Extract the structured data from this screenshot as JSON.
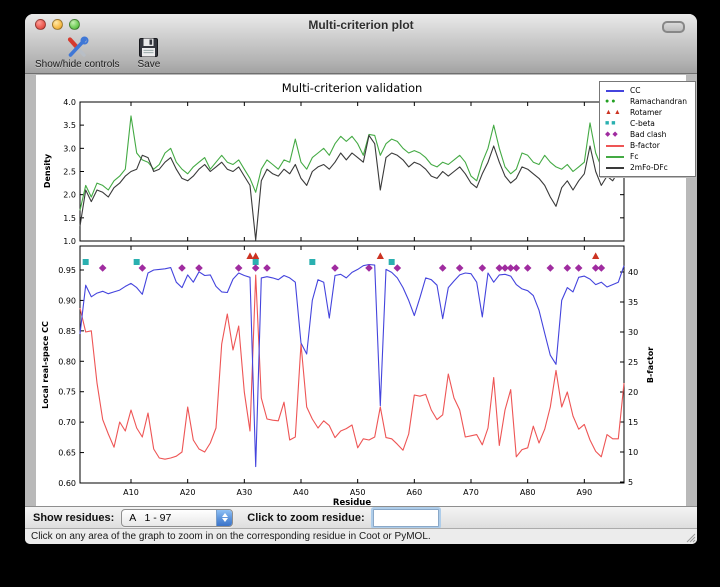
{
  "window": {
    "title": "Multi-criterion plot"
  },
  "toolbar": {
    "items": [
      {
        "label": "Show/hide controls",
        "icon": "tools-icon"
      },
      {
        "label": "Save",
        "icon": "save-icon"
      }
    ]
  },
  "figure_title": "Multi-criterion validation",
  "legend": {
    "entries": [
      {
        "label": "CC",
        "swatch": "line",
        "color": "#4444dd"
      },
      {
        "label": "Ramachandran",
        "swatch": "circles",
        "color": "#22a022"
      },
      {
        "label": "Rotamer",
        "swatch": "triangles",
        "color": "#cc3322"
      },
      {
        "label": "C-beta",
        "swatch": "squares",
        "color": "#2ab0b0"
      },
      {
        "label": "Bad clash",
        "swatch": "diamonds",
        "color": "#a02ca0"
      },
      {
        "label": "B-factor",
        "swatch": "line",
        "color": "#ee5555"
      },
      {
        "label": "Fc",
        "swatch": "line",
        "color": "#44aa44"
      },
      {
        "label": "2mFo-DFc",
        "swatch": "line",
        "color": "#3a3a3a"
      }
    ]
  },
  "colors": {
    "cc": "#4444dd",
    "bfactor": "#ee5555",
    "fc": "#44aa44",
    "two_mfo_dfc": "#3a3a3a",
    "ramachandran": "#22a022",
    "rotamer": "#cc3322",
    "cbeta": "#2ab0b0",
    "bad_clash": "#a02ca0"
  },
  "chart_data": [
    {
      "type": "line",
      "title": "Multi-criterion validation",
      "ylabel": "Density",
      "ylim": [
        1.0,
        4.0
      ],
      "yticks": {
        "labels": [
          "1.0",
          "1.5",
          "2.0",
          "2.5",
          "3.0",
          "3.5",
          "4.0"
        ],
        "values": [
          1.0,
          1.5,
          2.0,
          2.5,
          3.0,
          3.5,
          4.0
        ]
      },
      "x_range": [
        1,
        97
      ],
      "grid": false,
      "legend_position": "upper right",
      "series": [
        {
          "name": "Fc",
          "color_key": "fc",
          "values": [
            1.66,
            2.2,
            1.95,
            2.25,
            2.2,
            2.1,
            2.3,
            2.4,
            2.55,
            3.7,
            2.9,
            2.75,
            2.7,
            2.55,
            2.65,
            2.9,
            3.0,
            2.7,
            2.55,
            2.45,
            2.6,
            2.7,
            2.8,
            2.55,
            2.7,
            2.85,
            2.7,
            2.65,
            2.75,
            2.55,
            2.35,
            2.05,
            2.55,
            2.75,
            2.65,
            2.55,
            2.75,
            2.7,
            3.2,
            2.7,
            2.55,
            2.8,
            2.9,
            3.0,
            2.85,
            3.1,
            3.26,
            3.15,
            3.26,
            3.1,
            2.85,
            3.3,
            3.28,
            2.85,
            3.1,
            3.2,
            3.15,
            3.0,
            2.9,
            2.95,
            2.9,
            2.8,
            2.65,
            2.6,
            2.7,
            2.65,
            2.75,
            2.85,
            2.7,
            2.4,
            2.3,
            2.7,
            3.0,
            3.5,
            3.0,
            2.6,
            2.45,
            2.55,
            2.9,
            2.85,
            2.7,
            2.65,
            2.85,
            2.7,
            2.6,
            2.55,
            2.65,
            2.5,
            2.6,
            2.7,
            3.55,
            2.9,
            2.6,
            2.75,
            2.6,
            3.0,
            3.1
          ]
        },
        {
          "name": "2mFo-DFc",
          "color_key": "two_mfo_dfc",
          "values": [
            1.32,
            2.1,
            1.85,
            2.1,
            2.05,
            1.95,
            2.15,
            2.25,
            2.4,
            2.5,
            2.55,
            2.85,
            2.8,
            2.5,
            2.55,
            2.7,
            2.8,
            2.55,
            2.35,
            2.3,
            2.4,
            2.55,
            2.65,
            2.5,
            2.6,
            2.7,
            2.55,
            2.5,
            2.6,
            2.4,
            2.2,
            1.02,
            2.3,
            2.55,
            2.45,
            2.4,
            2.55,
            2.45,
            2.65,
            2.35,
            2.2,
            2.5,
            2.6,
            2.65,
            2.55,
            2.7,
            2.9,
            2.75,
            2.9,
            2.8,
            2.7,
            3.28,
            3.1,
            2.1,
            2.8,
            2.9,
            2.85,
            2.75,
            2.6,
            2.7,
            2.65,
            2.55,
            2.4,
            2.35,
            2.5,
            2.4,
            2.5,
            2.6,
            2.45,
            2.25,
            2.15,
            2.45,
            2.7,
            3.05,
            2.7,
            2.4,
            2.25,
            2.35,
            2.6,
            2.55,
            2.45,
            2.35,
            2.2,
            1.95,
            1.75,
            2.15,
            2.3,
            2.1,
            2.3,
            2.45,
            3.05,
            2.5,
            2.2,
            2.4,
            2.3,
            2.5,
            2.55
          ]
        }
      ]
    },
    {
      "type": "line",
      "xlabel": "Residue",
      "xticks": {
        "labels": [
          "A10",
          "A20",
          "A30",
          "A40",
          "A50",
          "A60",
          "A70",
          "A80",
          "A90"
        ],
        "values": [
          10,
          20,
          30,
          40,
          50,
          60,
          70,
          80,
          90
        ]
      },
      "x_range": [
        1,
        97
      ],
      "ylabel_left": "Local real-space CC",
      "ylim_left": [
        0.6,
        0.987
      ],
      "yticks_left": {
        "labels": [
          "0.60",
          "0.65",
          "0.70",
          "0.75",
          "0.80",
          "0.85",
          "0.90",
          "0.95"
        ],
        "values": [
          0.6,
          0.65,
          0.7,
          0.75,
          0.8,
          0.85,
          0.9,
          0.95
        ]
      },
      "ylabel_right": "B-factor",
      "ylim_right": [
        5,
        44.5
      ],
      "yticks_right": {
        "labels": [
          "5",
          "10",
          "15",
          "20",
          "25",
          "30",
          "35",
          "40"
        ],
        "values": [
          5,
          10,
          15,
          20,
          25,
          30,
          35,
          40
        ]
      },
      "grid": false,
      "series": [
        {
          "name": "CC",
          "axis": "left",
          "color_key": "cc",
          "values": [
            0.845,
            0.925,
            0.906,
            0.912,
            0.915,
            0.911,
            0.914,
            0.917,
            0.923,
            0.928,
            0.921,
            0.91,
            0.945,
            0.95,
            0.951,
            0.952,
            0.954,
            0.93,
            0.921,
            0.942,
            0.93,
            0.947,
            0.941,
            0.942,
            0.923,
            0.914,
            0.913,
            0.935,
            0.945,
            0.941,
            0.938,
            0.627,
            0.937,
            0.939,
            0.937,
            0.934,
            0.941,
            0.937,
            0.93,
            0.83,
            0.812,
            0.9,
            0.934,
            0.93,
            0.871,
            0.941,
            0.943,
            0.937,
            0.946,
            0.951,
            0.957,
            0.959,
            0.958,
            0.727,
            0.951,
            0.946,
            0.937,
            0.921,
            0.9,
            0.875,
            0.905,
            0.937,
            0.934,
            0.925,
            0.87,
            0.921,
            0.932,
            0.942,
            0.945,
            0.944,
            0.93,
            0.873,
            0.945,
            0.93,
            0.942,
            0.943,
            0.94,
            0.926,
            0.919,
            0.916,
            0.908,
            0.884,
            0.846,
            0.81,
            0.795,
            0.9,
            0.921,
            0.914,
            0.938,
            0.94,
            0.935,
            0.926,
            0.93,
            0.922,
            0.926,
            0.93,
            0.957
          ]
        },
        {
          "name": "B-factor",
          "axis": "right",
          "color_key": "bfactor",
          "values": [
            34.0,
            30.0,
            30.2,
            21.5,
            15.4,
            13.0,
            10.8,
            15.0,
            13.5,
            17.0,
            14.0,
            12.5,
            16.5,
            10.5,
            9.0,
            8.8,
            9.0,
            9.3,
            10.0,
            17.5,
            12.0,
            10.5,
            10.0,
            11.5,
            14.0,
            28.0,
            33.0,
            27.0,
            31.0,
            20.0,
            13.5,
            39.5,
            19.0,
            15.5,
            15.3,
            15.2,
            18.3,
            12.0,
            12.5,
            28.0,
            17.5,
            15.5,
            14.0,
            15.2,
            14.4,
            12.4,
            13.5,
            13.9,
            14.5,
            10.7,
            12.2,
            12.0,
            12.5,
            17.5,
            12.4,
            12.2,
            11.3,
            10.3,
            13.0,
            19.5,
            19.3,
            19.6,
            17.0,
            15.4,
            16.2,
            23.0,
            19.0,
            17.0,
            12.5,
            12.7,
            12.9,
            11.2,
            14.0,
            22.4,
            11.1,
            17.0,
            20.4,
            9.2,
            10.4,
            10.7,
            14.3,
            11.5,
            13.8,
            17.5,
            23.6,
            17.5,
            20.0,
            16.0,
            13.8,
            14.6,
            12.0,
            10.1,
            9.2,
            12.9,
            12.2,
            12.2,
            21.5
          ]
        }
      ],
      "outlier_markers": {
        "rotamer": {
          "shape": "triangle",
          "color_key": "rotamer",
          "residues": [
            31,
            32,
            54,
            92
          ]
        },
        "cbeta": {
          "shape": "square",
          "color_key": "cbeta",
          "residues": [
            2,
            11,
            32,
            42,
            56
          ]
        },
        "bad_clash": {
          "shape": "diamond",
          "color_key": "bad_clash",
          "residues": [
            5,
            12,
            19,
            22,
            29,
            32,
            34,
            46,
            52,
            57,
            65,
            68,
            72,
            75,
            76,
            77,
            78,
            80,
            84,
            87,
            89,
            92,
            93
          ]
        },
        "ramachandran": {
          "shape": "circle",
          "color_key": "ramachandran",
          "residues": []
        }
      }
    }
  ],
  "controls": {
    "show_residues_label": "Show residues:",
    "dropdown_value": "A   1 - 97",
    "zoom_label": "Click to zoom residue:",
    "zoom_value": ""
  },
  "status": "Click on any area of the graph to zoom in on the corresponding residue in Coot or PyMOL."
}
